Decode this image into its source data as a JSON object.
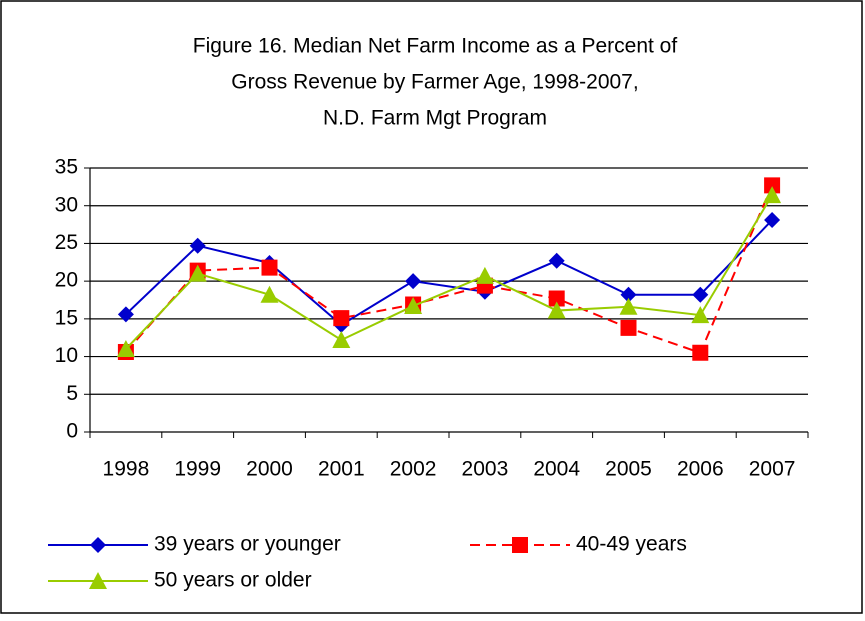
{
  "chart_data": {
    "type": "line",
    "title": [
      "Figure 16. Median Net Farm Income as a Percent of",
      "Gross Revenue by Farmer Age, 1998-2007,",
      "N.D. Farm Mgt Program"
    ],
    "categories": [
      "1998",
      "1999",
      "2000",
      "2001",
      "2002",
      "2003",
      "2004",
      "2005",
      "2006",
      "2007"
    ],
    "series": [
      {
        "name": "39 years or younger",
        "color": "#0000cc",
        "marker": "diamond",
        "dash": false,
        "values": [
          15.6,
          24.7,
          22.4,
          14.2,
          20.0,
          18.6,
          22.7,
          18.2,
          18.2,
          28.1
        ]
      },
      {
        "name": "40-49 years",
        "color": "#ff0000",
        "marker": "square",
        "dash": true,
        "values": [
          10.6,
          21.4,
          21.8,
          15.1,
          16.9,
          19.4,
          17.7,
          13.8,
          10.5,
          32.7
        ]
      },
      {
        "name": "50 years or older",
        "color": "#99cc00",
        "marker": "triangle",
        "dash": false,
        "values": [
          11.0,
          21.0,
          18.2,
          12.2,
          16.7,
          20.7,
          16.1,
          16.6,
          15.5,
          31.4
        ]
      }
    ],
    "ylim": [
      0,
      35
    ],
    "yticks": [
      0,
      5,
      10,
      15,
      20,
      25,
      30,
      35
    ],
    "grid": true,
    "legend": "bottom"
  }
}
